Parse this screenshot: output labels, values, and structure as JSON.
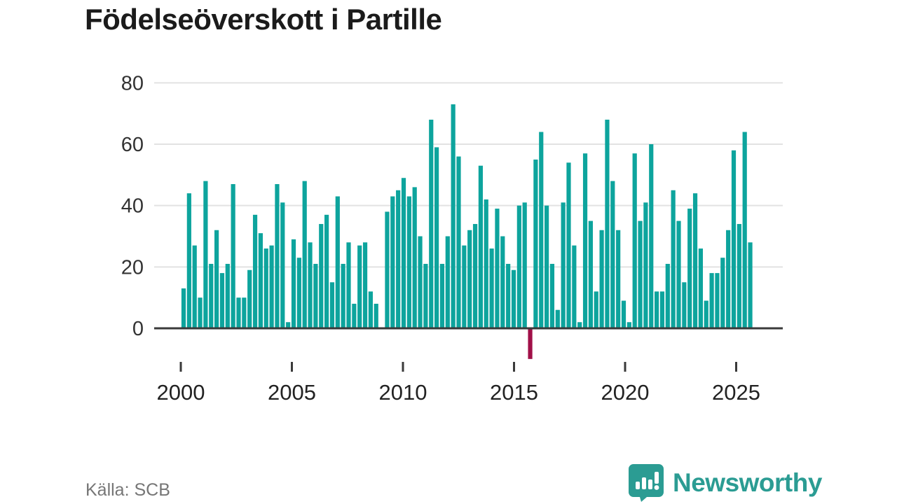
{
  "header": {
    "title": "Födelseöverskott i Partille"
  },
  "footer": {
    "source_label": "Källa: SCB"
  },
  "branding": {
    "wordmark": "Newsworthy",
    "logo_icon": "bar-chart-badge-icon",
    "color": "#2b9c93"
  },
  "chart_data": {
    "type": "bar",
    "title": "Födelseöverskott i Partille",
    "source": "Källa: SCB",
    "frequency": "quarterly",
    "start_period": "2000-Q1",
    "end_period": "2025-Q4",
    "values": [
      13,
      44,
      27,
      10,
      48,
      21,
      32,
      18,
      21,
      47,
      10,
      10,
      19,
      37,
      31,
      26,
      27,
      47,
      41,
      2,
      29,
      23,
      48,
      28,
      21,
      34,
      37,
      15,
      43,
      21,
      28,
      8,
      27,
      28,
      12,
      8,
      0,
      38,
      43,
      45,
      49,
      43,
      46,
      30,
      21,
      68,
      59,
      21,
      30,
      73,
      56,
      27,
      32,
      34,
      53,
      42,
      26,
      39,
      30,
      21,
      19,
      40,
      41,
      -10,
      55,
      64,
      40,
      21,
      6,
      41,
      54,
      27,
      2,
      57,
      35,
      12,
      32,
      68,
      48,
      32,
      9,
      2,
      57,
      35,
      41,
      60,
      12,
      12,
      21,
      45,
      35,
      15,
      39,
      44,
      26,
      9,
      18,
      18,
      23,
      32,
      58,
      34,
      64,
      28
    ],
    "y_ticks": [
      0,
      20,
      40,
      60,
      80
    ],
    "x_ticks": [
      2000,
      2005,
      2010,
      2015,
      2020,
      2025
    ],
    "ylim": [
      -12,
      80
    ],
    "grid": "horizontal",
    "legend": "none",
    "bar_color": "#0da49d",
    "negative_bar_color": "#a11048",
    "negative_period": "2015-Q4",
    "axis_color": "#3a3a3a",
    "gridline_color": "#e2e2e2",
    "tick_label_color": "#333333"
  }
}
